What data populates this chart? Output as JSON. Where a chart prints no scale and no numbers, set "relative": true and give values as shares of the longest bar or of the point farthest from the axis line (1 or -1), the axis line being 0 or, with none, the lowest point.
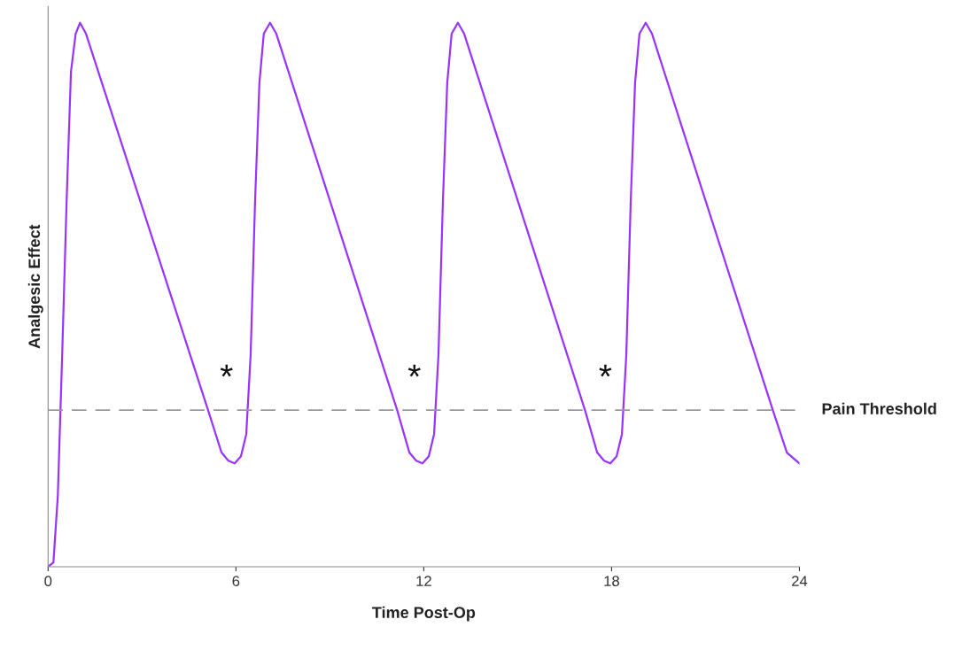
{
  "chart_data": {
    "type": "line",
    "xlabel": "Time Post-Op",
    "ylabel": "Analgesic Effect",
    "relative": true,
    "xlim": [
      0,
      24
    ],
    "xticks": [
      0,
      6,
      12,
      18,
      24
    ],
    "tick_labels": "x",
    "grid": false,
    "legend": false,
    "marker": "none",
    "line_style": "solid",
    "series": [
      {
        "color": "#9933ff",
        "x": [
          0,
          0.17,
          0.31,
          0.45,
          0.59,
          0.73,
          0.88,
          1.02,
          1.21,
          5.11,
          5.54,
          5.76,
          5.96,
          6.16,
          6.33,
          6.47,
          6.61,
          6.75,
          6.89,
          7.09,
          7.29,
          11.15,
          11.54,
          11.76,
          11.96,
          12.16,
          12.33,
          12.47,
          12.61,
          12.75,
          12.89,
          13.09,
          13.29,
          17.15,
          17.54,
          17.76,
          17.96,
          18.16,
          18.33,
          18.47,
          18.61,
          18.75,
          18.89,
          19.09,
          19.29,
          23.15,
          23.6,
          24
        ],
        "values": [
          0,
          0.008,
          0.13,
          0.39,
          0.67,
          0.91,
          0.98,
          1.0,
          0.98,
          0.288,
          0.21,
          0.195,
          0.19,
          0.203,
          0.244,
          0.39,
          0.67,
          0.89,
          0.98,
          1.0,
          0.98,
          0.288,
          0.21,
          0.195,
          0.19,
          0.203,
          0.244,
          0.39,
          0.67,
          0.89,
          0.98,
          1.0,
          0.98,
          0.288,
          0.21,
          0.195,
          0.19,
          0.203,
          0.244,
          0.39,
          0.67,
          0.89,
          0.98,
          1.0,
          0.98,
          0.288,
          0.21,
          0.19
        ]
      }
    ],
    "ref_lines": [
      {
        "axis": "y",
        "value": 0.288,
        "label": "Pain Threshold",
        "color": "#999999",
        "line_style": "dashed"
      }
    ],
    "annotations": [
      {
        "text": "*",
        "x": 5.7,
        "y": 0.288
      },
      {
        "text": "*",
        "x": 11.7,
        "y": 0.288
      },
      {
        "text": "*",
        "x": 17.8,
        "y": 0.288
      }
    ]
  }
}
